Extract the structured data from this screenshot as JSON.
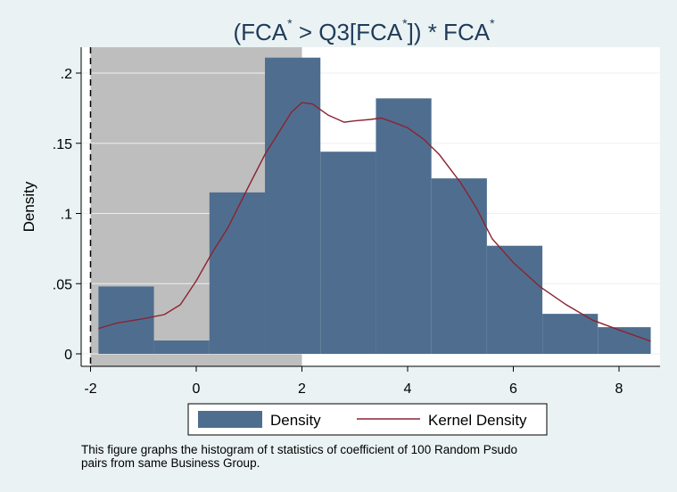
{
  "chart_data": {
    "type": "bar",
    "title_parts": [
      "(FCA",
      "*",
      " > Q3[FCA",
      "*",
      "]) * FCA",
      "*"
    ],
    "ylabel": "Density",
    "xlabel": "",
    "xlim": [
      -2.1,
      8.7
    ],
    "ylim": [
      0,
      0.22
    ],
    "xticks": [
      -2,
      0,
      2,
      4,
      6,
      8
    ],
    "xtick_labels": [
      "-2",
      "0",
      "2",
      "4",
      "6",
      "8"
    ],
    "yticks": [
      0,
      0.05,
      0.1,
      0.15,
      0.2
    ],
    "ytick_labels": [
      "0",
      ".05",
      ".1",
      ".15",
      ".2"
    ],
    "bins": [
      {
        "x0": -1.85,
        "x1": -0.8,
        "value": 0.048
      },
      {
        "x0": -0.8,
        "x1": 0.25,
        "value": 0.0095
      },
      {
        "x0": 0.25,
        "x1": 1.3,
        "value": 0.115
      },
      {
        "x0": 1.3,
        "x1": 2.35,
        "value": 0.211
      },
      {
        "x0": 2.35,
        "x1": 3.4,
        "value": 0.144
      },
      {
        "x0": 3.4,
        "x1": 4.45,
        "value": 0.182
      },
      {
        "x0": 4.45,
        "x1": 5.5,
        "value": 0.125
      },
      {
        "x0": 5.5,
        "x1": 6.55,
        "value": 0.077
      },
      {
        "x0": 6.55,
        "x1": 7.6,
        "value": 0.0285
      },
      {
        "x0": 7.6,
        "x1": 8.6,
        "value": 0.019
      }
    ],
    "kernel_density": {
      "x": [
        -1.85,
        -1.5,
        -1.0,
        -0.6,
        -0.3,
        0.0,
        0.3,
        0.6,
        1.0,
        1.3,
        1.6,
        1.8,
        2.0,
        2.2,
        2.5,
        2.8,
        3.0,
        3.3,
        3.5,
        3.8,
        4.0,
        4.3,
        4.6,
        5.0,
        5.3,
        5.6,
        6.0,
        6.5,
        7.0,
        7.5,
        8.0,
        8.6
      ],
      "y": [
        0.018,
        0.022,
        0.025,
        0.028,
        0.035,
        0.052,
        0.072,
        0.09,
        0.12,
        0.142,
        0.16,
        0.172,
        0.179,
        0.178,
        0.17,
        0.165,
        0.166,
        0.167,
        0.168,
        0.164,
        0.161,
        0.153,
        0.142,
        0.122,
        0.104,
        0.082,
        0.065,
        0.048,
        0.035,
        0.024,
        0.017,
        0.009
      ]
    },
    "shaded_region": {
      "x0": -2.0,
      "x1": 2.0
    },
    "reference_line_x": -2.0,
    "colors": {
      "bars": "#4f6e8f",
      "kernel": "#8b2332",
      "shade": "#bebebe",
      "plot_bg": "#ffffff",
      "outer_bg": "#eaf2f3",
      "title": "#1f3b5a"
    },
    "legend": {
      "position": "bottom-center",
      "entries": [
        {
          "label": "Density",
          "kind": "bar"
        },
        {
          "label": "Kernel Density",
          "kind": "line"
        }
      ]
    },
    "grid": "horizontal"
  },
  "note": {
    "line1": "This figure graphs the histogram of t statistics of coefficient of 100 Random Psudo",
    "line2": "pairs from same Business Group."
  }
}
